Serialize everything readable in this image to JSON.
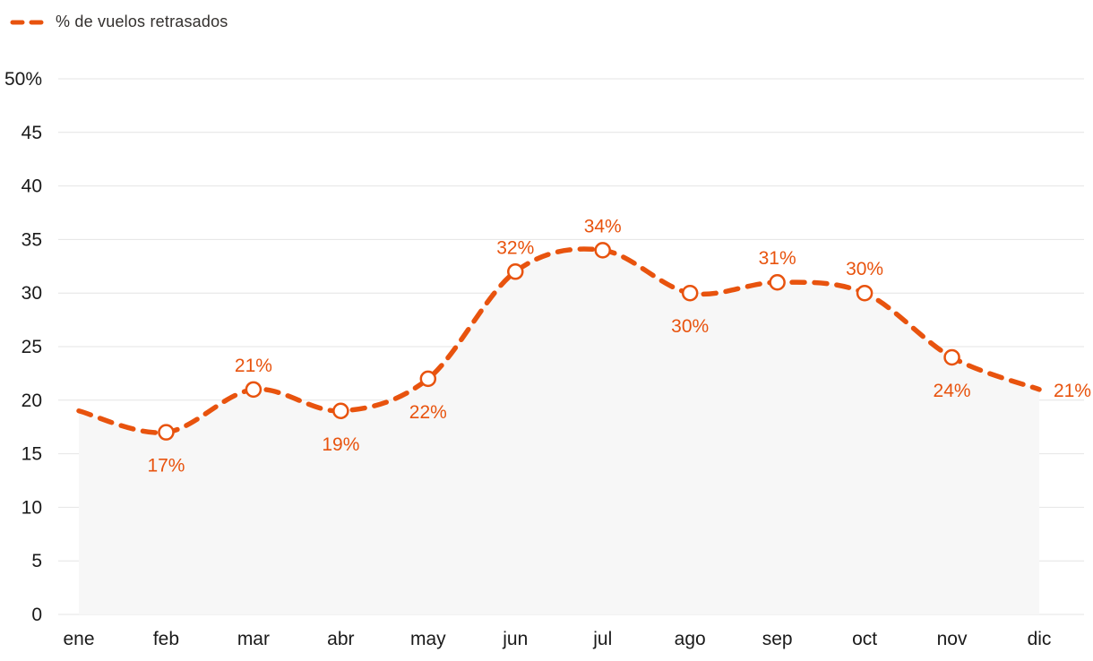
{
  "chart_data": {
    "type": "line",
    "legend": "% de vuelos retrasados",
    "categories": [
      "ene",
      "feb",
      "mar",
      "abr",
      "may",
      "jun",
      "jul",
      "ago",
      "sep",
      "oct",
      "nov",
      "dic"
    ],
    "values": [
      19,
      17,
      21,
      19,
      22,
      32,
      34,
      30,
      31,
      30,
      24,
      21
    ],
    "point_labels": [
      "",
      "17%",
      "21%",
      "19%",
      "22%",
      "32%",
      "34%",
      "30%",
      "31%",
      "30%",
      "24%",
      "21%"
    ],
    "label_positions": [
      "none",
      "below",
      "above",
      "below",
      "below",
      "above",
      "above",
      "below",
      "above",
      "above",
      "below",
      "right"
    ],
    "markers": [
      false,
      true,
      true,
      true,
      true,
      true,
      true,
      true,
      true,
      true,
      true,
      false
    ],
    "ylim": [
      0,
      50
    ],
    "ytick_step": 5,
    "ytick_labels": [
      "0",
      "5",
      "10",
      "15",
      "20",
      "25",
      "30",
      "35",
      "40",
      "45",
      "50%"
    ],
    "line_style": "dashed",
    "line_color": "#e8530e",
    "label_color": "#e8530e",
    "area_color": "#f7f7f7",
    "grid_color": "#e4e4e4",
    "axis_text_color": "#1a1a1a",
    "legend_position": "top-left",
    "grid": true,
    "xlabel": "",
    "ylabel": ""
  }
}
